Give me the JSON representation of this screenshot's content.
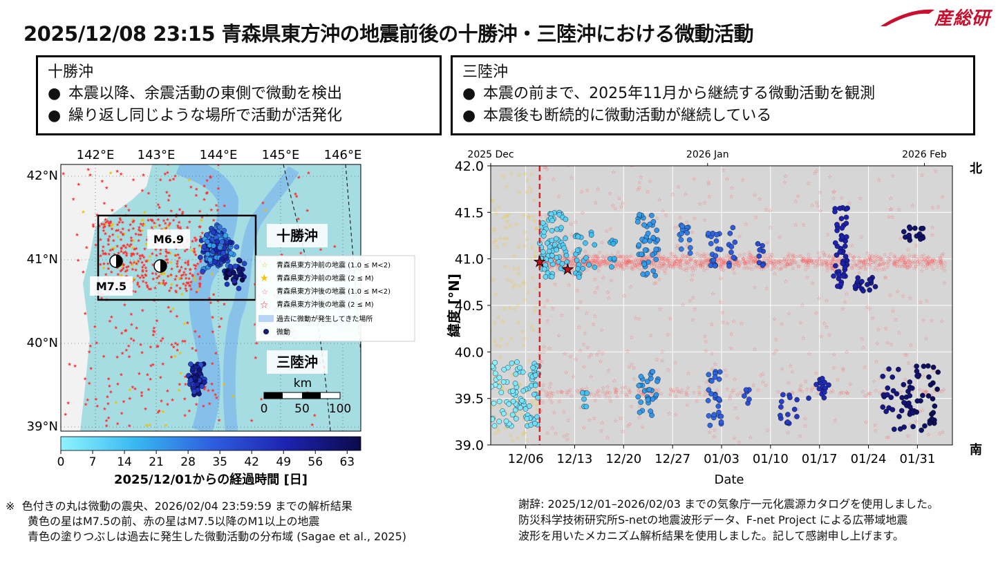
{
  "header": {
    "title": "2025/12/08 23:15 青森県東方沖の地震前後の十勝沖・三陸沖における微動活動",
    "logo_text": "産総研",
    "logo_color": "#c8102e"
  },
  "box_left": {
    "title": "十勝沖",
    "bullets": [
      "本震以降、余震活動の東側で微動を検出",
      "繰り返し同じような場所で活動が活発化"
    ]
  },
  "box_right": {
    "title": "三陸沖",
    "bullets": [
      "本震の前まで、2025年11月から継続する微動活動を観測",
      "本震後も断続的に微動活動が継続している"
    ]
  },
  "bullet_glyph": "●",
  "map": {
    "lon_labels": [
      "142°E",
      "143°E",
      "144°E",
      "145°E",
      "146°E"
    ],
    "lat_labels": [
      "42°N",
      "41°N",
      "40°N",
      "39°N"
    ],
    "region_labels": {
      "tokachi": "十勝沖",
      "sanriku": "三陸沖"
    },
    "mech_labels": {
      "m69": "M6.9",
      "m75": "M7.5"
    },
    "legend": [
      "青森県東方沖前の地震 (1.0 ≤ M<2)",
      "青森県東方沖前の地震 (2 ≤ M)",
      "青森県東方沖後の地震 (1.0 ≤ M<2)",
      "青森県東方沖後の地震 (2 ≤ M)",
      "過去に微動が発生してきた場所",
      "微動"
    ],
    "scale": {
      "unit": "km",
      "ticks": [
        "0",
        "50",
        "100"
      ]
    },
    "colorbar": {
      "ticks": [
        "0",
        "7",
        "14",
        "21",
        "28",
        "35",
        "42",
        "49",
        "56",
        "63"
      ],
      "label": "2025/12/01からの経過時間 [日]"
    },
    "colors": {
      "sea": "#a6dde3",
      "land": "#f2f2f2",
      "past_tremor": "#6aa8f0",
      "box": "#000000"
    }
  },
  "chart_data": {
    "type": "scatter",
    "xlabel": "Date",
    "ylabel": "緯度 [°N]",
    "ylim": [
      39.0,
      42.0
    ],
    "xlim_days_label": "2025-12-01 to 2026-02-04",
    "x_ticks": [
      "12/06",
      "12/13",
      "12/20",
      "12/27",
      "01/03",
      "01/10",
      "01/17",
      "01/24",
      "01/31"
    ],
    "x_top_ticks": [
      "2025 Dec",
      "2026 Jan",
      "2026 Feb"
    ],
    "y_ticks": [
      "39.0",
      "39.5",
      "40.0",
      "40.5",
      "41.0",
      "41.5",
      "42.0"
    ],
    "north_label": "北",
    "south_label": "南",
    "mainshock_date": "2025-12-08",
    "grid": true,
    "series": [
      {
        "name": "微動",
        "clusters": [
          {
            "start": "2025-12-01",
            "end": "2025-12-08",
            "lat": [
              39.2,
              39.9
            ],
            "count": 90
          },
          {
            "start": "2025-12-08",
            "end": "2025-12-12",
            "lat": [
              40.8,
              41.5
            ],
            "count": 70
          },
          {
            "start": "2025-12-13",
            "end": "2025-12-16",
            "lat": [
              40.8,
              41.3
            ],
            "count": 25
          },
          {
            "start": "2025-12-18",
            "end": "2025-12-19",
            "lat": [
              40.9,
              41.2
            ],
            "count": 8
          },
          {
            "start": "2025-12-22",
            "end": "2025-12-25",
            "lat": [
              40.8,
              41.5
            ],
            "count": 45
          },
          {
            "start": "2025-12-28",
            "end": "2025-12-30",
            "lat": [
              41.0,
              41.4
            ],
            "count": 14
          },
          {
            "start": "2026-01-01",
            "end": "2026-01-03",
            "lat": [
              40.9,
              41.3
            ],
            "count": 18
          },
          {
            "start": "2026-01-04",
            "end": "2026-01-05",
            "lat": [
              40.9,
              41.5
            ],
            "count": 10
          },
          {
            "start": "2026-01-08",
            "end": "2026-01-09",
            "lat": [
              40.8,
              41.2
            ],
            "count": 8
          },
          {
            "start": "2026-01-19",
            "end": "2026-01-21",
            "lat": [
              40.7,
              41.55
            ],
            "count": 50
          },
          {
            "start": "2026-01-22",
            "end": "2026-01-25",
            "lat": [
              40.65,
              40.8
            ],
            "count": 18
          },
          {
            "start": "2026-01-29",
            "end": "2026-02-01",
            "lat": [
              41.2,
              41.35
            ],
            "count": 16
          },
          {
            "start": "2025-12-14",
            "end": "2025-12-15",
            "lat": [
              39.4,
              39.6
            ],
            "count": 6
          },
          {
            "start": "2025-12-22",
            "end": "2025-12-25",
            "lat": [
              39.3,
              39.8
            ],
            "count": 30
          },
          {
            "start": "2026-01-01",
            "end": "2026-01-03",
            "lat": [
              39.2,
              39.8
            ],
            "count": 28
          },
          {
            "start": "2026-01-06",
            "end": "2026-01-07",
            "lat": [
              39.4,
              39.6
            ],
            "count": 6
          },
          {
            "start": "2026-01-11",
            "end": "2026-01-14",
            "lat": [
              39.2,
              39.6
            ],
            "count": 14
          },
          {
            "start": "2026-01-15",
            "end": "2026-01-19",
            "lat": [
              39.5,
              39.75
            ],
            "count": 14
          },
          {
            "start": "2026-01-26",
            "end": "2026-02-03",
            "lat": [
              39.15,
              39.85
            ],
            "count": 70
          }
        ]
      },
      {
        "name": "青森県東方沖後の地震 (1.0 ≤ M<2)",
        "band_lat": [
          40.85,
          41.05
        ],
        "start": "2025-12-08",
        "end": "2026-02-03"
      },
      {
        "name": "青森県東方沖前の地震 (1.0 ≤ M<2)",
        "start": "2025-12-01",
        "end": "2025-12-08"
      }
    ],
    "stars": [
      {
        "date": "2025-12-08",
        "lat": 40.97,
        "label": "M7.5"
      },
      {
        "date": "2025-12-12",
        "lat": 40.89,
        "label": "M6.9"
      }
    ],
    "colorbar_range_days": [
      0,
      66
    ]
  },
  "footnote": {
    "mark": "※",
    "lines": [
      "色付きの丸は微動の震央、2026/02/04 23:59:59 までの解析結果",
      "黄色の星はM7.5の前、赤の星はM7.5以降のM1以上の地震",
      "青色の塗りつぶしは過去に発生した微動活動の分布域 (Sagae et al., 2025)"
    ]
  },
  "acknowledgement": {
    "lines": [
      "謝辞: 2025/12/01–2026/02/03 までの気象庁一元化震源カタログを使用しました。",
      "防災科学技術研究所S-netの地震波形データ、F-net Project による広帯域地震",
      "波形を用いたメカニズム解析結果を使用しました。記して感謝申し上げます。"
    ]
  }
}
